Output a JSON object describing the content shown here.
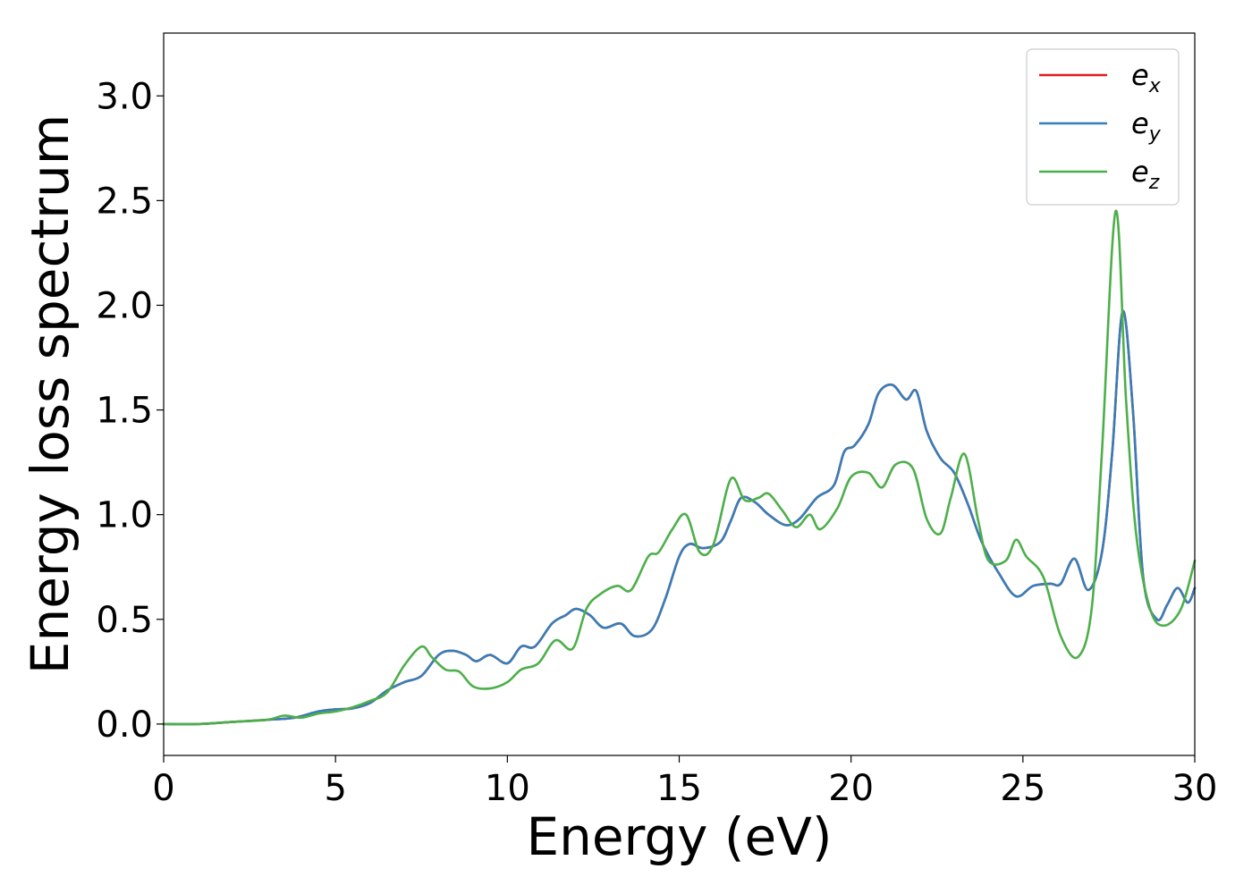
{
  "chart_data": {
    "type": "line",
    "xlabel": "Energy (eV)",
    "ylabel": "Energy loss spectrum",
    "xlim": [
      0,
      30
    ],
    "ylim": [
      -0.15,
      3.3
    ],
    "xticks": [
      "0",
      "5",
      "10",
      "15",
      "20",
      "25",
      "30"
    ],
    "yticks": [
      "0.0",
      "0.5",
      "1.0",
      "1.5",
      "2.0",
      "2.5",
      "3.0"
    ],
    "legend_placement": "top-right",
    "grid": false,
    "series": [
      {
        "name": "e",
        "subscript": "x",
        "color": "#e41a1c",
        "points": [
          [
            0,
            0
          ],
          [
            1,
            0
          ],
          [
            2,
            0.01
          ],
          [
            3,
            0.02
          ],
          [
            3.8,
            0.03
          ],
          [
            4.5,
            0.06
          ],
          [
            5,
            0.07
          ],
          [
            5.5,
            0.075
          ],
          [
            6,
            0.1
          ],
          [
            6.5,
            0.16
          ],
          [
            7,
            0.2
          ],
          [
            7.5,
            0.23
          ],
          [
            8,
            0.33
          ],
          [
            8.4,
            0.35
          ],
          [
            8.8,
            0.33
          ],
          [
            9.1,
            0.3
          ],
          [
            9.5,
            0.33
          ],
          [
            10,
            0.29
          ],
          [
            10.4,
            0.37
          ],
          [
            10.8,
            0.37
          ],
          [
            11.3,
            0.48
          ],
          [
            11.7,
            0.52
          ],
          [
            12,
            0.55
          ],
          [
            12.4,
            0.52
          ],
          [
            12.8,
            0.46
          ],
          [
            13.3,
            0.48
          ],
          [
            13.7,
            0.42
          ],
          [
            14.2,
            0.45
          ],
          [
            14.6,
            0.6
          ],
          [
            15,
            0.8
          ],
          [
            15.3,
            0.86
          ],
          [
            15.7,
            0.84
          ],
          [
            16.2,
            0.87
          ],
          [
            16.5,
            0.97
          ],
          [
            16.8,
            1.08
          ],
          [
            17.2,
            1.06
          ],
          [
            17.6,
            1
          ],
          [
            18.1,
            0.95
          ],
          [
            18.5,
            0.98
          ],
          [
            19,
            1.08
          ],
          [
            19.5,
            1.14
          ],
          [
            19.8,
            1.3
          ],
          [
            20.1,
            1.33
          ],
          [
            20.5,
            1.43
          ],
          [
            20.8,
            1.58
          ],
          [
            21.2,
            1.62
          ],
          [
            21.6,
            1.55
          ],
          [
            21.9,
            1.59
          ],
          [
            22.2,
            1.4
          ],
          [
            22.6,
            1.27
          ],
          [
            23,
            1.2
          ],
          [
            23.4,
            1.05
          ],
          [
            23.8,
            0.87
          ],
          [
            24.3,
            0.72
          ],
          [
            24.8,
            0.61
          ],
          [
            25.3,
            0.66
          ],
          [
            25.8,
            0.67
          ],
          [
            26.1,
            0.67
          ],
          [
            26.5,
            0.79
          ],
          [
            26.9,
            0.64
          ],
          [
            27.3,
            0.82
          ],
          [
            27.6,
            1.3
          ],
          [
            27.9,
            1.97
          ],
          [
            28.2,
            1.5
          ],
          [
            28.5,
            0.7
          ],
          [
            28.9,
            0.5
          ],
          [
            29.2,
            0.57
          ],
          [
            29.5,
            0.65
          ],
          [
            29.8,
            0.58
          ],
          [
            30,
            0.65
          ]
        ]
      },
      {
        "name": "e",
        "subscript": "y",
        "color": "#377eb8",
        "points": [
          [
            0,
            0
          ],
          [
            1,
            0
          ],
          [
            2,
            0.01
          ],
          [
            3,
            0.02
          ],
          [
            3.8,
            0.03
          ],
          [
            4.5,
            0.06
          ],
          [
            5,
            0.07
          ],
          [
            5.5,
            0.075
          ],
          [
            6,
            0.1
          ],
          [
            6.5,
            0.16
          ],
          [
            7,
            0.2
          ],
          [
            7.5,
            0.23
          ],
          [
            8,
            0.33
          ],
          [
            8.4,
            0.35
          ],
          [
            8.8,
            0.33
          ],
          [
            9.1,
            0.3
          ],
          [
            9.5,
            0.33
          ],
          [
            10,
            0.29
          ],
          [
            10.4,
            0.37
          ],
          [
            10.8,
            0.37
          ],
          [
            11.3,
            0.48
          ],
          [
            11.7,
            0.52
          ],
          [
            12,
            0.55
          ],
          [
            12.4,
            0.52
          ],
          [
            12.8,
            0.46
          ],
          [
            13.3,
            0.48
          ],
          [
            13.7,
            0.42
          ],
          [
            14.2,
            0.45
          ],
          [
            14.6,
            0.6
          ],
          [
            15,
            0.8
          ],
          [
            15.3,
            0.86
          ],
          [
            15.7,
            0.84
          ],
          [
            16.2,
            0.87
          ],
          [
            16.5,
            0.97
          ],
          [
            16.8,
            1.08
          ],
          [
            17.2,
            1.06
          ],
          [
            17.6,
            1
          ],
          [
            18.1,
            0.95
          ],
          [
            18.5,
            0.98
          ],
          [
            19,
            1.08
          ],
          [
            19.5,
            1.14
          ],
          [
            19.8,
            1.3
          ],
          [
            20.1,
            1.33
          ],
          [
            20.5,
            1.43
          ],
          [
            20.8,
            1.58
          ],
          [
            21.2,
            1.62
          ],
          [
            21.6,
            1.55
          ],
          [
            21.9,
            1.59
          ],
          [
            22.2,
            1.4
          ],
          [
            22.6,
            1.27
          ],
          [
            23,
            1.2
          ],
          [
            23.4,
            1.05
          ],
          [
            23.8,
            0.87
          ],
          [
            24.3,
            0.72
          ],
          [
            24.8,
            0.61
          ],
          [
            25.3,
            0.66
          ],
          [
            25.8,
            0.67
          ],
          [
            26.1,
            0.67
          ],
          [
            26.5,
            0.79
          ],
          [
            26.9,
            0.64
          ],
          [
            27.3,
            0.82
          ],
          [
            27.6,
            1.3
          ],
          [
            27.9,
            1.97
          ],
          [
            28.2,
            1.5
          ],
          [
            28.5,
            0.7
          ],
          [
            28.9,
            0.5
          ],
          [
            29.2,
            0.57
          ],
          [
            29.5,
            0.65
          ],
          [
            29.8,
            0.58
          ],
          [
            30,
            0.65
          ]
        ]
      },
      {
        "name": "e",
        "subscript": "z",
        "color": "#4daf4a",
        "points": [
          [
            0,
            0
          ],
          [
            1,
            0
          ],
          [
            2,
            0.01
          ],
          [
            3,
            0.02
          ],
          [
            3.5,
            0.04
          ],
          [
            4,
            0.03
          ],
          [
            4.5,
            0.05
          ],
          [
            5,
            0.06
          ],
          [
            5.5,
            0.08
          ],
          [
            6,
            0.11
          ],
          [
            6.5,
            0.15
          ],
          [
            7,
            0.28
          ],
          [
            7.5,
            0.37
          ],
          [
            7.8,
            0.32
          ],
          [
            8.2,
            0.26
          ],
          [
            8.6,
            0.25
          ],
          [
            9,
            0.18
          ],
          [
            9.5,
            0.17
          ],
          [
            10,
            0.2
          ],
          [
            10.4,
            0.26
          ],
          [
            10.9,
            0.29
          ],
          [
            11.4,
            0.4
          ],
          [
            11.9,
            0.36
          ],
          [
            12.3,
            0.55
          ],
          [
            12.7,
            0.62
          ],
          [
            13.2,
            0.66
          ],
          [
            13.6,
            0.64
          ],
          [
            14.1,
            0.8
          ],
          [
            14.4,
            0.82
          ],
          [
            14.8,
            0.93
          ],
          [
            15.2,
            1
          ],
          [
            15.6,
            0.82
          ],
          [
            16,
            0.86
          ],
          [
            16.5,
            1.17
          ],
          [
            16.9,
            1.07
          ],
          [
            17.3,
            1.08
          ],
          [
            17.6,
            1.1
          ],
          [
            18,
            1.02
          ],
          [
            18.4,
            0.94
          ],
          [
            18.8,
            1
          ],
          [
            19.1,
            0.93
          ],
          [
            19.6,
            1.03
          ],
          [
            20,
            1.18
          ],
          [
            20.5,
            1.2
          ],
          [
            20.9,
            1.13
          ],
          [
            21.3,
            1.24
          ],
          [
            21.8,
            1.22
          ],
          [
            22.2,
            0.98
          ],
          [
            22.6,
            0.91
          ],
          [
            22.9,
            1.08
          ],
          [
            23.3,
            1.29
          ],
          [
            23.7,
            0.97
          ],
          [
            24,
            0.78
          ],
          [
            24.5,
            0.78
          ],
          [
            24.8,
            0.88
          ],
          [
            25.1,
            0.8
          ],
          [
            25.6,
            0.7
          ],
          [
            26.1,
            0.42
          ],
          [
            26.6,
            0.32
          ],
          [
            27,
            0.55
          ],
          [
            27.3,
            1.3
          ],
          [
            27.7,
            2.45
          ],
          [
            28,
            1.55
          ],
          [
            28.3,
            0.9
          ],
          [
            28.7,
            0.55
          ],
          [
            29.1,
            0.47
          ],
          [
            29.6,
            0.55
          ],
          [
            30,
            0.78
          ]
        ]
      }
    ]
  }
}
